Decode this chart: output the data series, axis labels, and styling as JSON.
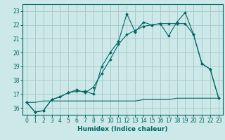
{
  "title": "",
  "xlabel": "Humidex (Indice chaleur)",
  "bg_color": "#cce8e8",
  "grid_color": "#aacccc",
  "line_color": "#006666",
  "xlim": [
    -0.5,
    23.5
  ],
  "ylim": [
    15.5,
    23.5
  ],
  "xticks": [
    0,
    1,
    2,
    3,
    4,
    5,
    6,
    7,
    8,
    9,
    10,
    11,
    12,
    13,
    14,
    15,
    16,
    17,
    18,
    19,
    20,
    21,
    22,
    23
  ],
  "yticks": [
    16,
    17,
    18,
    19,
    20,
    21,
    22,
    23
  ],
  "series1_x": [
    0,
    1,
    2,
    3,
    4,
    5,
    6,
    7,
    8,
    9,
    10,
    11,
    12,
    13,
    14,
    15,
    16,
    17,
    18,
    19,
    20,
    21,
    22,
    23
  ],
  "series1_y": [
    16.4,
    15.7,
    15.8,
    16.6,
    16.8,
    17.1,
    17.2,
    17.2,
    17.0,
    19.0,
    20.0,
    20.8,
    22.8,
    21.5,
    22.2,
    22.0,
    22.1,
    21.2,
    22.2,
    22.9,
    21.3,
    19.2,
    18.8,
    16.7
  ],
  "series2_x": [
    0,
    1,
    2,
    3,
    4,
    5,
    6,
    7,
    8,
    9,
    10,
    11,
    12,
    13,
    14,
    15,
    16,
    17,
    18,
    19,
    20,
    21,
    22,
    23
  ],
  "series2_y": [
    16.4,
    15.7,
    15.8,
    16.6,
    16.8,
    17.1,
    17.3,
    17.1,
    17.5,
    18.5,
    19.5,
    20.6,
    21.3,
    21.6,
    21.9,
    22.0,
    22.1,
    22.1,
    22.1,
    22.1,
    21.3,
    19.2,
    18.8,
    16.7
  ],
  "series3_x": [
    0,
    1,
    2,
    3,
    4,
    5,
    6,
    7,
    8,
    9,
    10,
    11,
    12,
    13,
    14,
    15,
    16,
    17,
    18,
    19,
    20,
    21,
    22,
    23
  ],
  "series3_y": [
    16.4,
    16.4,
    16.5,
    16.5,
    16.5,
    16.5,
    16.5,
    16.5,
    16.5,
    16.5,
    16.5,
    16.5,
    16.5,
    16.5,
    16.6,
    16.6,
    16.6,
    16.6,
    16.7,
    16.7,
    16.7,
    16.7,
    16.7,
    16.7
  ],
  "tick_fontsize": 5.5,
  "xlabel_fontsize": 6.5
}
